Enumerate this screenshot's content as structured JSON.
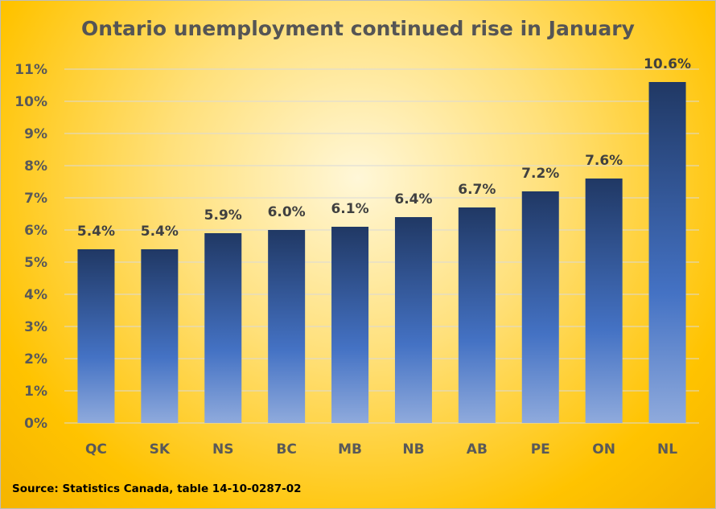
{
  "chart_data": {
    "type": "bar",
    "title": "Ontario unemployment continued rise in January",
    "source": "Source: Statistics Canada, table 14-10-0287-02",
    "categories": [
      "QC",
      "SK",
      "NS",
      "BC",
      "MB",
      "NB",
      "AB",
      "PE",
      "ON",
      "NL"
    ],
    "values": [
      5.4,
      5.4,
      5.9,
      6.0,
      6.1,
      6.4,
      6.7,
      7.2,
      7.6,
      10.6
    ],
    "data_labels": [
      "5.4%",
      "5.4%",
      "5.9%",
      "6.0%",
      "6.1%",
      "6.4%",
      "6.7%",
      "7.2%",
      "7.6%",
      "10.6%"
    ],
    "y_ticks": [
      "0%",
      "1%",
      "2%",
      "3%",
      "4%",
      "5%",
      "6%",
      "7%",
      "8%",
      "9%",
      "10%",
      "11%"
    ],
    "ylim": [
      0,
      11
    ],
    "grid": true,
    "colors": {
      "bar_top": "#203864",
      "bar_mid": "#4472c4",
      "bar_bottom": "#8faadc",
      "grid": "#d9d9d9"
    }
  }
}
